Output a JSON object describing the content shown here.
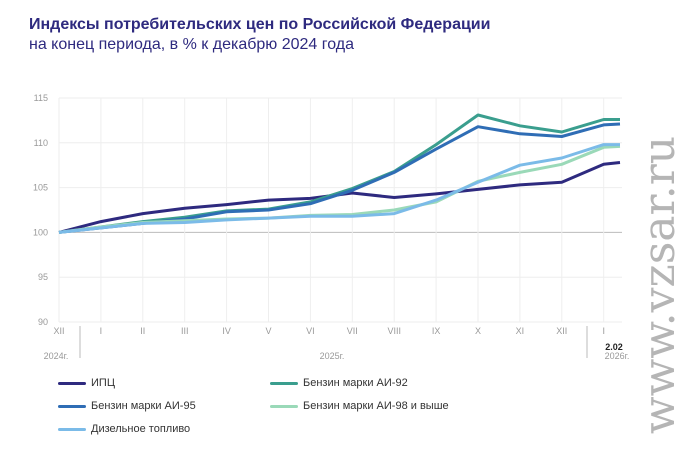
{
  "title": "Индексы потребительских цен по Российской Федерации",
  "subtitle": "на конец периода, в % к декабрю 2024 года",
  "watermark": "www.vzsar.ru",
  "chart_data": {
    "type": "line",
    "title": "Индексы потребительских цен по Российской Федерации",
    "subtitle": "на конец периода, в % к декабрю 2024 года",
    "categories": [
      "XII",
      "I",
      "II",
      "III",
      "IV",
      "V",
      "VI",
      "VII",
      "VIII",
      "IX",
      "X",
      "XI",
      "XII",
      "I",
      "2.02"
    ],
    "year_labels": [
      "2024г.",
      "2025г.",
      "2026г."
    ],
    "ylim": [
      90,
      115
    ],
    "yticks": [
      90,
      95,
      100,
      105,
      110,
      115
    ],
    "grid": true,
    "legend_position": "bottom",
    "series": [
      {
        "name": "ИПЦ",
        "color": "#2e2a7f",
        "values": [
          100,
          101.2,
          102.1,
          102.7,
          103.1,
          103.6,
          103.8,
          104.4,
          103.9,
          104.3,
          104.8,
          105.3,
          105.6,
          107.6,
          107.8
        ]
      },
      {
        "name": "Бензин марки АИ-92",
        "color": "#3a9e8e",
        "values": [
          100,
          100.6,
          101.2,
          101.7,
          102.4,
          102.6,
          103.4,
          104.9,
          106.8,
          109.8,
          113.1,
          111.9,
          111.2,
          112.6,
          112.6
        ]
      },
      {
        "name": "Бензин марки АИ-95",
        "color": "#2f6db5",
        "values": [
          100,
          100.5,
          101.0,
          101.5,
          102.3,
          102.5,
          103.2,
          104.7,
          106.7,
          109.3,
          111.8,
          111.0,
          110.7,
          112.0,
          112.1
        ]
      },
      {
        "name": "Бензин марки АИ-98 и выше",
        "color": "#9ad9b8",
        "values": [
          100,
          100.6,
          101.1,
          101.3,
          101.5,
          101.6,
          101.9,
          102.0,
          102.5,
          103.4,
          105.7,
          106.7,
          107.6,
          109.5,
          109.6
        ]
      },
      {
        "name": "Дизельное топливо",
        "color": "#7bbbe8",
        "values": [
          100,
          100.5,
          101.0,
          101.1,
          101.4,
          101.6,
          101.8,
          101.8,
          102.1,
          103.6,
          105.6,
          107.5,
          108.3,
          109.8,
          109.8
        ]
      }
    ]
  }
}
